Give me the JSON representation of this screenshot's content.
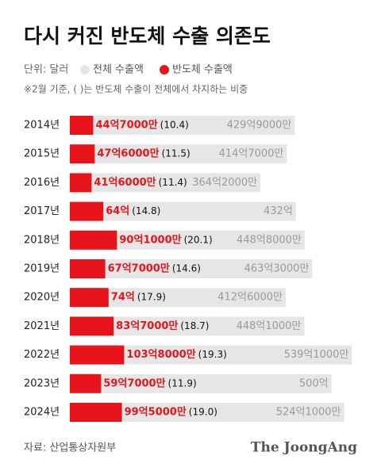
{
  "chart_data": {
    "type": "overlap-bar",
    "title": "다시 커진 반도체 수출 의존도",
    "unit_label": "단위: 달러",
    "note": "※2월 기준, ( )는 반도체 수출이 전체에서 차지하는 비중",
    "source": "자료: 산업통상자원부",
    "brand": "The JoongAng",
    "categories": [
      "2014년",
      "2015년",
      "2016년",
      "2017년",
      "2018년",
      "2019년",
      "2020년",
      "2021년",
      "2022년",
      "2023년",
      "2024년"
    ],
    "xlim": [
      0,
      540
    ],
    "series": [
      {
        "name": "전체 수출액",
        "color": "#e6e6e6",
        "label_color": "#9a9a9a",
        "values": [
          429.9,
          414.7,
          364.2,
          432,
          448.8,
          463.3,
          412.6,
          448.1,
          539.1,
          500,
          524.1
        ],
        "value_labels": [
          "429억9000만",
          "414억7000만",
          "364억2000만",
          "432억",
          "448억8000만",
          "463억3000만",
          "412억6000만",
          "448억1000만",
          "539억1000만",
          "500억",
          "524억1000만"
        ]
      },
      {
        "name": "반도체 수출액",
        "color": "#e8141b",
        "label_color": "#e8141b",
        "values": [
          44.7,
          47.6,
          41.6,
          64,
          90.1,
          67.7,
          74,
          83.7,
          103.8,
          59.7,
          99.5
        ],
        "value_labels": [
          "44억7000만",
          "47억6000만",
          "41억6000만",
          "64억",
          "90억1000만",
          "67억7000만",
          "74억",
          "83억7000만",
          "103억8000만",
          "59억7000만",
          "99억5000만"
        ]
      }
    ],
    "shares": {
      "values": [
        10.4,
        11.5,
        11.4,
        14.8,
        20.1,
        14.6,
        17.9,
        18.7,
        19.3,
        11.9,
        19.0
      ],
      "value_labels": [
        "(10.4)",
        "(11.5)",
        "(11.4)",
        "(14.8)",
        "(20.1)",
        "(14.6)",
        "(17.9)",
        "(18.7)",
        "(19.3)",
        "(11.9)",
        "(19.0)"
      ]
    }
  }
}
